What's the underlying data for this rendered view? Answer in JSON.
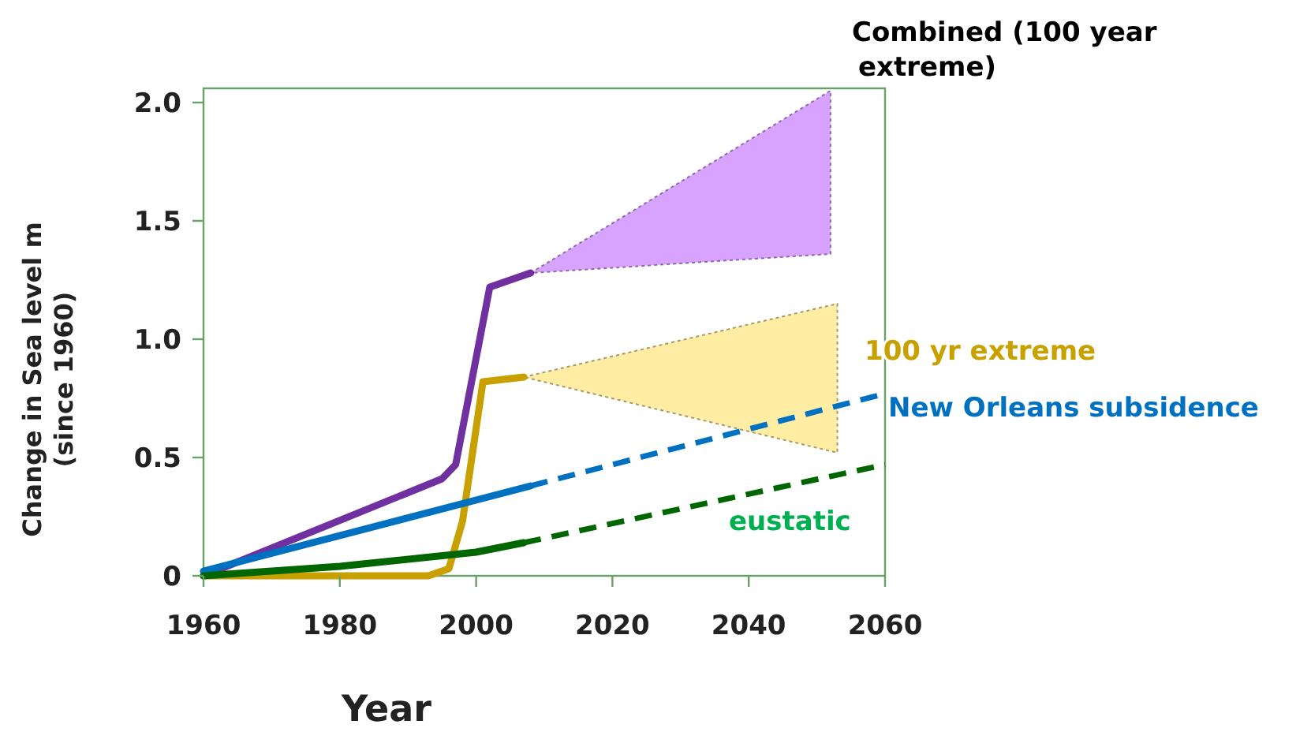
{
  "chart_data": {
    "type": "line",
    "xlabel": "Year",
    "ylabel": "Change in Sea level m (since 1960)",
    "xlim": [
      1960,
      2060
    ],
    "xticks": [
      1960,
      1980,
      2000,
      2020,
      2040,
      2060
    ],
    "ylim": [
      0,
      2.06
    ],
    "yticks": [
      0,
      0.5,
      {
        "value": 1,
        "label": "1.0"
      },
      1.5,
      {
        "value": 2,
        "label": "2.0"
      }
    ],
    "grid": false,
    "marker": "none",
    "series": [
      {
        "name": "Combined (100 year extreme)",
        "color": "#7030a0",
        "x": [
          1960,
          1995,
          1997,
          2002,
          2008,
          2052
        ],
        "values": [
          0,
          0.41,
          0.47,
          1.22,
          1.28,
          null
        ],
        "lower": [
          null,
          null,
          null,
          null,
          1.28,
          1.36
        ],
        "upper": [
          null,
          null,
          null,
          null,
          1.28,
          2.05
        ]
      },
      {
        "name": "100 yr extreme",
        "color": "#c8a000",
        "x": [
          1960,
          1975,
          1993,
          1996,
          1998,
          2001,
          2007,
          2053
        ],
        "values": [
          0,
          0,
          0,
          0.03,
          0.23,
          0.82,
          0.84,
          null
        ],
        "lower": [
          null,
          null,
          null,
          null,
          null,
          null,
          0.84,
          0.52
        ],
        "upper": [
          null,
          null,
          null,
          null,
          null,
          null,
          0.84,
          1.15
        ]
      },
      {
        "name": "New Orleans subsidence",
        "color": "#0070c0",
        "x": [
          1960,
          2008
        ],
        "values": [
          0.02,
          0.38
        ]
      },
      {
        "color": "#0070c0",
        "line_style": "dashed",
        "x": [
          2008,
          2060
        ],
        "values": [
          0.38,
          0.77
        ]
      },
      {
        "name": "eustatic",
        "color": "#006600",
        "x": [
          1960,
          1980,
          2000,
          2007
        ],
        "values": [
          0,
          0.04,
          0.1,
          0.14
        ]
      },
      {
        "color": "#006600",
        "line_style": "dashed",
        "x": [
          2007,
          2060
        ],
        "values": [
          0.14,
          0.47
        ]
      }
    ]
  }
}
